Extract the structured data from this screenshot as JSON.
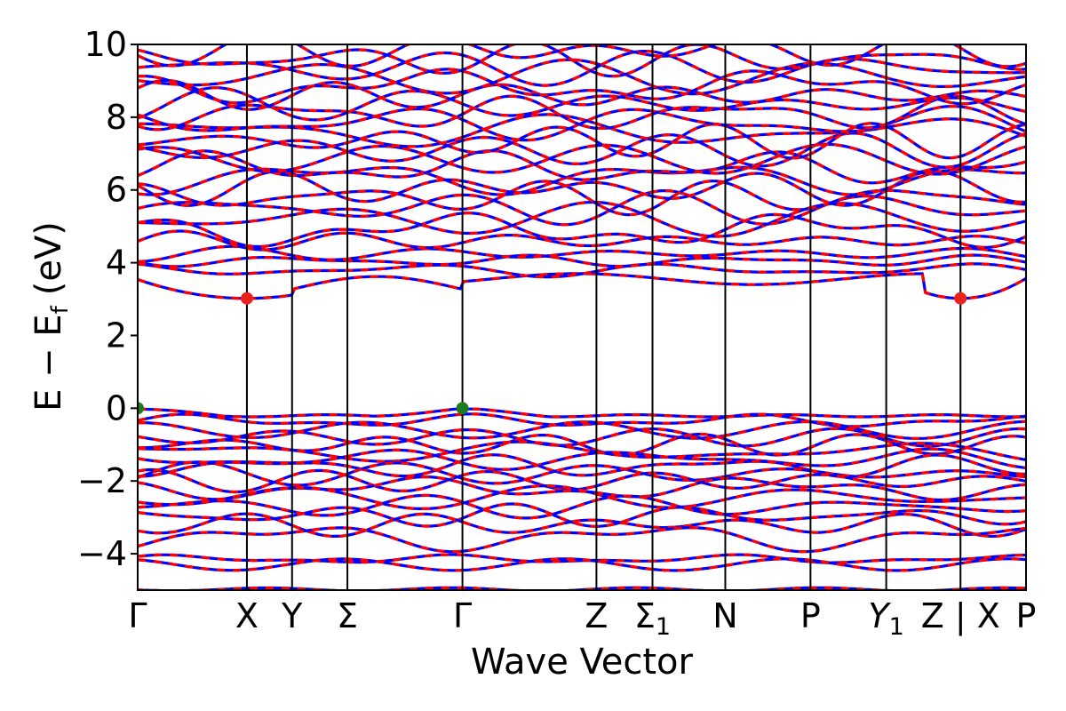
{
  "chart_data": {
    "type": "line",
    "xlabel": "Wave Vector",
    "ylabel_main": "E − E",
    "ylabel_sub": "f",
    "ylabel_unit": "(eV)",
    "ylim": [
      -5,
      10
    ],
    "yticks": [
      "−4",
      "−2",
      "0",
      "2",
      "4",
      "6",
      "8",
      "10"
    ],
    "ytick_values": [
      -4,
      -2,
      0,
      2,
      4,
      6,
      8,
      10
    ],
    "xlim": [
      0,
      12.2
    ],
    "kpoints": [
      {
        "label": "Γ",
        "x": 0.0
      },
      {
        "label": "X",
        "x": 1.5
      },
      {
        "label": "Y",
        "x": 2.12
      },
      {
        "label": "Σ",
        "x": 2.88
      },
      {
        "label": "Γ",
        "x": 4.46
      },
      {
        "label": "Z",
        "x": 6.3
      },
      {
        "label": "Σ",
        "sub": "1",
        "x": 7.07
      },
      {
        "label": "N",
        "x": 8.07
      },
      {
        "label": "P",
        "x": 9.24
      },
      {
        "label": "Y",
        "sub": "1",
        "italic": true,
        "x": 10.28
      },
      {
        "label": "Z | X",
        "x": 11.3
      },
      {
        "label": "P",
        "x": 12.2
      }
    ],
    "series_colors": {
      "spin_up": "#ff0000",
      "spin_down": "#0000ff"
    },
    "cbm": {
      "energy": 3.02,
      "x": [
        1.5,
        11.3
      ],
      "color": "#e8231c"
    },
    "vbm": {
      "energy": 0.0,
      "x": [
        0.0,
        4.46
      ],
      "color": "#1f7a1f"
    },
    "bands": [
      {
        "e": 3.55,
        "amp": 0.55,
        "shape": "cbm"
      },
      {
        "e": 3.8,
        "amp": 0.12
      },
      {
        "e": 4.05,
        "amp": 0.1
      },
      {
        "e": 4.25,
        "amp": 0.15
      },
      {
        "e": 4.6,
        "amp": 0.25
      },
      {
        "e": 4.9,
        "amp": 0.3
      },
      {
        "e": 5.2,
        "amp": 0.3
      },
      {
        "e": 5.5,
        "amp": 0.3
      },
      {
        "e": 5.8,
        "amp": 0.3
      },
      {
        "e": 6.05,
        "amp": 0.3
      },
      {
        "e": 6.35,
        "amp": 0.3
      },
      {
        "e": 6.6,
        "amp": 0.3
      },
      {
        "e": 6.85,
        "amp": 0.3
      },
      {
        "e": 7.1,
        "amp": 0.3
      },
      {
        "e": 7.35,
        "amp": 0.3
      },
      {
        "e": 7.6,
        "amp": 0.3
      },
      {
        "e": 7.85,
        "amp": 0.3
      },
      {
        "e": 8.1,
        "amp": 0.3
      },
      {
        "e": 8.35,
        "amp": 0.3
      },
      {
        "e": 8.6,
        "amp": 0.3
      },
      {
        "e": 8.85,
        "amp": 0.3
      },
      {
        "e": 9.1,
        "amp": 0.3
      },
      {
        "e": 9.35,
        "amp": 0.3
      },
      {
        "e": 9.6,
        "amp": 0.3
      },
      {
        "e": 9.85,
        "amp": 0.3
      },
      {
        "e": -0.1,
        "amp": 0.12,
        "shape": "vbm"
      },
      {
        "e": -0.35,
        "amp": 0.12
      },
      {
        "e": -0.6,
        "amp": 0.15
      },
      {
        "e": -0.8,
        "amp": 0.15
      },
      {
        "e": -1.0,
        "amp": 0.18
      },
      {
        "e": -1.2,
        "amp": 0.18
      },
      {
        "e": -1.4,
        "amp": 0.18
      },
      {
        "e": -1.6,
        "amp": 0.2
      },
      {
        "e": -1.8,
        "amp": 0.2
      },
      {
        "e": -2.0,
        "amp": 0.2
      },
      {
        "e": -2.2,
        "amp": 0.2
      },
      {
        "e": -2.45,
        "amp": 0.2
      },
      {
        "e": -2.7,
        "amp": 0.2
      },
      {
        "e": -2.95,
        "amp": 0.2
      },
      {
        "e": -3.2,
        "amp": 0.2
      },
      {
        "e": -3.55,
        "amp": 0.25
      },
      {
        "e": -4.15,
        "amp": 0.08
      },
      {
        "e": -4.3,
        "amp": 0.1
      },
      {
        "e": -4.98,
        "amp": 0.03
      }
    ]
  }
}
